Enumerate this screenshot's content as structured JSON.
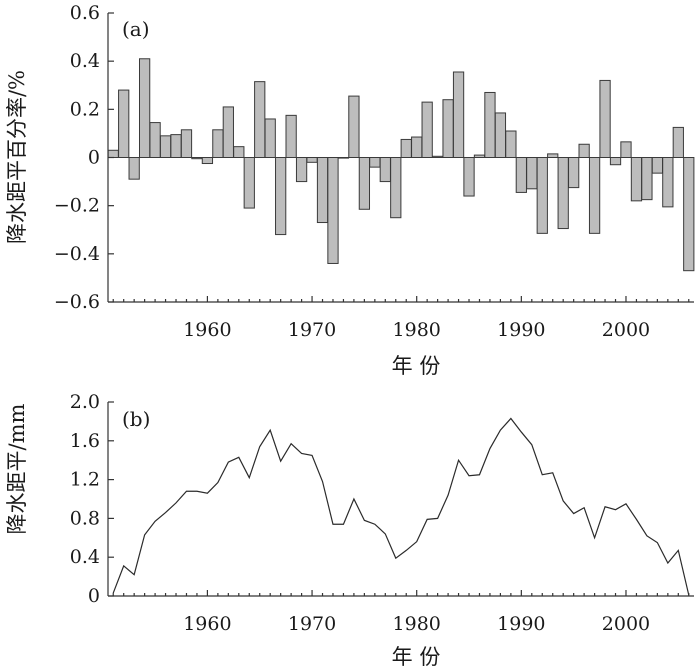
{
  "chart_data": [
    {
      "type": "bar",
      "panel_label": "(a)",
      "xlabel": "年  份",
      "ylabel": "降水距平百分率/%",
      "xlim": [
        1950.5,
        2006.5
      ],
      "ylim": [
        -0.6,
        0.6
      ],
      "yticks": [
        -0.6,
        -0.4,
        -0.2,
        0,
        0.2,
        0.4,
        0.6
      ],
      "ytick_labels": [
        "−0.6",
        "−0.4",
        "−0.2",
        "0",
        "0.2",
        "0.4",
        "0.6"
      ],
      "xticks": [
        1960,
        1970,
        1980,
        1990,
        2000
      ],
      "xtick_labels": [
        "1960",
        "1970",
        "1980",
        "1990",
        "2000"
      ],
      "grid": false,
      "x": [
        1951,
        1952,
        1953,
        1954,
        1955,
        1956,
        1957,
        1958,
        1959,
        1960,
        1961,
        1962,
        1963,
        1964,
        1965,
        1966,
        1967,
        1968,
        1969,
        1970,
        1971,
        1972,
        1973,
        1974,
        1975,
        1976,
        1977,
        1978,
        1979,
        1980,
        1981,
        1982,
        1983,
        1984,
        1985,
        1986,
        1987,
        1988,
        1989,
        1990,
        1991,
        1992,
        1993,
        1994,
        1995,
        1996,
        1997,
        1998,
        1999,
        2000,
        2001,
        2002,
        2003,
        2004,
        2005,
        2006
      ],
      "values": [
        0.03,
        0.28,
        -0.09,
        0.41,
        0.145,
        0.09,
        0.095,
        0.115,
        -0.005,
        -0.025,
        0.115,
        0.21,
        0.045,
        -0.21,
        0.315,
        0.16,
        -0.32,
        0.175,
        -0.1,
        -0.02,
        -0.27,
        -0.44,
        0,
        0.255,
        -0.215,
        -0.04,
        -0.1,
        -0.25,
        0.075,
        0.085,
        0.23,
        0.005,
        0.24,
        0.355,
        -0.16,
        0.01,
        0.27,
        0.185,
        0.11,
        -0.145,
        -0.13,
        -0.315,
        0.015,
        -0.295,
        -0.125,
        0.055,
        -0.315,
        0.32,
        -0.03,
        0.065,
        -0.18,
        -0.175,
        -0.065,
        -0.205,
        0.125,
        -0.47
      ]
    },
    {
      "type": "line",
      "panel_label": "(b)",
      "xlabel": "年  份",
      "ylabel": "降水距平/mm",
      "xlim": [
        1950.5,
        2006.5
      ],
      "ylim": [
        0,
        2.0
      ],
      "yticks": [
        0,
        0.4,
        0.8,
        1.2,
        1.6,
        2.0
      ],
      "ytick_labels": [
        "0",
        "0.4",
        "0.8",
        "1.2",
        "1.6",
        "2.0"
      ],
      "xticks": [
        1960,
        1970,
        1980,
        1990,
        2000
      ],
      "xtick_labels": [
        "1960",
        "1970",
        "1980",
        "1990",
        "2000"
      ],
      "grid": false,
      "x": [
        1951,
        1952,
        1953,
        1954,
        1955,
        1956,
        1957,
        1958,
        1959,
        1960,
        1961,
        1962,
        1963,
        1964,
        1965,
        1966,
        1967,
        1968,
        1969,
        1970,
        1971,
        1972,
        1973,
        1974,
        1975,
        1976,
        1977,
        1978,
        1979,
        1980,
        1981,
        1982,
        1983,
        1984,
        1985,
        1986,
        1987,
        1988,
        1989,
        1990,
        1991,
        1992,
        1993,
        1994,
        1995,
        1996,
        1997,
        1998,
        1999,
        2000,
        2001,
        2002,
        2003,
        2004,
        2005,
        2006
      ],
      "values": [
        0.03,
        0.31,
        0.22,
        0.63,
        0.77,
        0.86,
        0.96,
        1.08,
        1.08,
        1.06,
        1.17,
        1.38,
        1.43,
        1.22,
        1.54,
        1.71,
        1.39,
        1.57,
        1.47,
        1.45,
        1.18,
        0.74,
        0.74,
        1.0,
        0.78,
        0.74,
        0.64,
        0.39,
        0.47,
        0.56,
        0.79,
        0.8,
        1.04,
        1.4,
        1.24,
        1.25,
        1.52,
        1.71,
        1.83,
        1.69,
        1.56,
        1.25,
        1.27,
        0.98,
        0.85,
        0.91,
        0.6,
        0.92,
        0.89,
        0.95,
        0.79,
        0.62,
        0.55,
        0.34,
        0.47,
        0.01
      ]
    }
  ]
}
